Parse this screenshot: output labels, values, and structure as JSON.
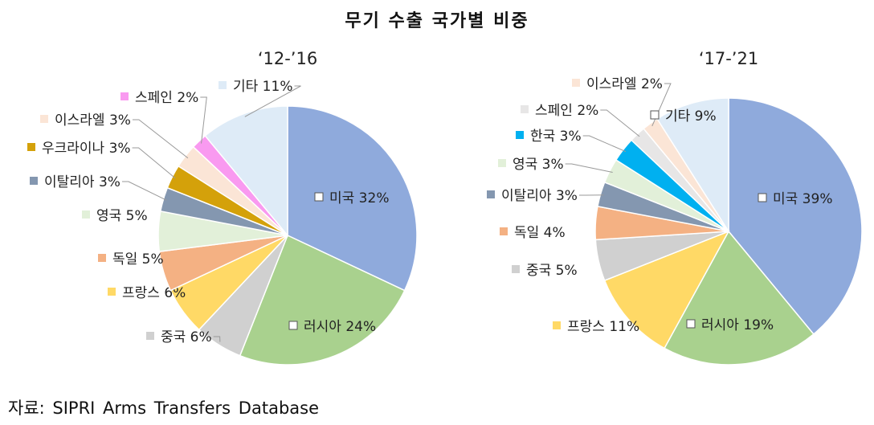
{
  "title": "무기 수출 국가별 비중",
  "source": "자료: SIPRI Arms Transfers Database",
  "chart_data": [
    {
      "type": "pie",
      "title": "‘12-’16",
      "slices": [
        {
          "name": "미국",
          "label": "미국 32%",
          "value": 32,
          "color": "#8faadc"
        },
        {
          "name": "러시아",
          "label": "러시아 24%",
          "value": 24,
          "color": "#a9d18e"
        },
        {
          "name": "중국",
          "label": "중국 6%",
          "value": 6,
          "color": "#d0d0d0"
        },
        {
          "name": "프랑스",
          "label": "프랑스 6%",
          "value": 6,
          "color": "#ffd966"
        },
        {
          "name": "독일",
          "label": "독일 5%",
          "value": 5,
          "color": "#f4b183"
        },
        {
          "name": "영국",
          "label": "영국 5%",
          "value": 5,
          "color": "#e2f0d9"
        },
        {
          "name": "이탈리아",
          "label": "이탈리아 3%",
          "value": 3,
          "color": "#8497b0"
        },
        {
          "name": "우크라이나",
          "label": "우크라이나 3%",
          "value": 3,
          "color": "#d4a10a"
        },
        {
          "name": "이스라엘",
          "label": "이스라엘 3%",
          "value": 3,
          "color": "#fbe5d6"
        },
        {
          "name": "스페인",
          "label": "스페인 2%",
          "value": 2,
          "color": "#f99af0"
        },
        {
          "name": "기타",
          "label": "기타 11%",
          "value": 11,
          "color": "#deebf7"
        }
      ]
    },
    {
      "type": "pie",
      "title": "‘17-’21",
      "slices": [
        {
          "name": "미국",
          "label": "미국 39%",
          "value": 39,
          "color": "#8faadc"
        },
        {
          "name": "러시아",
          "label": "러시아 19%",
          "value": 19,
          "color": "#a9d18e"
        },
        {
          "name": "프랑스",
          "label": "프랑스 11%",
          "value": 11,
          "color": "#ffd966"
        },
        {
          "name": "중국",
          "label": "중국 5%",
          "value": 5,
          "color": "#d0d0d0"
        },
        {
          "name": "독일",
          "label": "독일 4%",
          "value": 4,
          "color": "#f4b183"
        },
        {
          "name": "이탈리아",
          "label": "이탈리아 3%",
          "value": 3,
          "color": "#8497b0"
        },
        {
          "name": "영국",
          "label": "영국 3%",
          "value": 3,
          "color": "#e2f0d9"
        },
        {
          "name": "한국",
          "label": "한국 3%",
          "value": 3,
          "color": "#00b0f0"
        },
        {
          "name": "스페인",
          "label": "스페인 2%",
          "value": 2,
          "color": "#e7e6e6"
        },
        {
          "name": "이스라엘",
          "label": "이스라엘 2%",
          "value": 2,
          "color": "#fbe5d6"
        },
        {
          "name": "기타",
          "label": "기타 9%",
          "value": 9,
          "color": "#deebf7"
        }
      ]
    }
  ]
}
